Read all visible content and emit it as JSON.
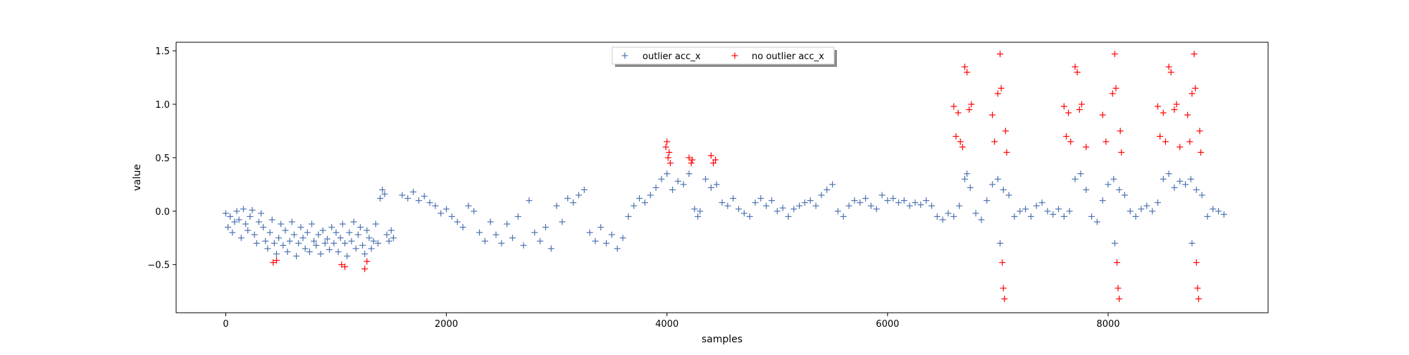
{
  "chart_data": {
    "type": "scatter",
    "title": "",
    "xlabel": "samples",
    "ylabel": "value",
    "xlim": [
      -450,
      9450
    ],
    "ylim": [
      -0.95,
      1.58
    ],
    "xticks": [
      0,
      2000,
      4000,
      6000,
      8000
    ],
    "xtick_labels": [
      "0",
      "2000",
      "4000",
      "6000",
      "8000"
    ],
    "yticks": [
      -0.5,
      0.0,
      0.5,
      1.0,
      1.5
    ],
    "ytick_labels": [
      "−0.5",
      "0.0",
      "0.5",
      "1.0",
      "1.5"
    ],
    "grid": false,
    "legend_position": "top-center",
    "marker": "+",
    "series": [
      {
        "name": "outlier acc_x",
        "color": "#4c72b0",
        "points": [
          [
            0,
            -0.02
          ],
          [
            20,
            -0.15
          ],
          [
            40,
            -0.05
          ],
          [
            60,
            -0.2
          ],
          [
            80,
            -0.1
          ],
          [
            100,
            0.0
          ],
          [
            120,
            -0.08
          ],
          [
            140,
            -0.25
          ],
          [
            160,
            0.02
          ],
          [
            180,
            -0.12
          ],
          [
            200,
            -0.18
          ],
          [
            220,
            -0.05
          ],
          [
            240,
            0.01
          ],
          [
            260,
            -0.22
          ],
          [
            280,
            -0.3
          ],
          [
            300,
            -0.1
          ],
          [
            320,
            -0.02
          ],
          [
            340,
            -0.15
          ],
          [
            360,
            -0.28
          ],
          [
            380,
            -0.35
          ],
          [
            400,
            -0.2
          ],
          [
            420,
            -0.08
          ],
          [
            440,
            -0.3
          ],
          [
            460,
            -0.4
          ],
          [
            480,
            -0.25
          ],
          [
            500,
            -0.12
          ],
          [
            520,
            -0.32
          ],
          [
            540,
            -0.18
          ],
          [
            560,
            -0.38
          ],
          [
            580,
            -0.28
          ],
          [
            600,
            -0.1
          ],
          [
            620,
            -0.22
          ],
          [
            640,
            -0.42
          ],
          [
            660,
            -0.3
          ],
          [
            680,
            -0.15
          ],
          [
            700,
            -0.25
          ],
          [
            720,
            -0.35
          ],
          [
            740,
            -0.2
          ],
          [
            760,
            -0.38
          ],
          [
            780,
            -0.12
          ],
          [
            800,
            -0.28
          ],
          [
            820,
            -0.32
          ],
          [
            840,
            -0.22
          ],
          [
            860,
            -0.4
          ],
          [
            880,
            -0.18
          ],
          [
            900,
            -0.3
          ],
          [
            920,
            -0.26
          ],
          [
            940,
            -0.36
          ],
          [
            960,
            -0.15
          ],
          [
            980,
            -0.3
          ],
          [
            1000,
            -0.2
          ],
          [
            1020,
            -0.38
          ],
          [
            1040,
            -0.25
          ],
          [
            1060,
            -0.12
          ],
          [
            1080,
            -0.3
          ],
          [
            1100,
            -0.42
          ],
          [
            1120,
            -0.2
          ],
          [
            1140,
            -0.28
          ],
          [
            1160,
            -0.1
          ],
          [
            1180,
            -0.35
          ],
          [
            1200,
            -0.22
          ],
          [
            1220,
            -0.15
          ],
          [
            1240,
            -0.32
          ],
          [
            1260,
            -0.4
          ],
          [
            1280,
            -0.18
          ],
          [
            1300,
            -0.25
          ],
          [
            1320,
            -0.35
          ],
          [
            1340,
            -0.28
          ],
          [
            1360,
            -0.12
          ],
          [
            1380,
            -0.3
          ],
          [
            1400,
            0.12
          ],
          [
            1420,
            0.2
          ],
          [
            1440,
            0.16
          ],
          [
            1460,
            -0.22
          ],
          [
            1480,
            -0.28
          ],
          [
            1500,
            -0.18
          ],
          [
            1520,
            -0.25
          ],
          [
            1600,
            0.15
          ],
          [
            1650,
            0.12
          ],
          [
            1700,
            0.18
          ],
          [
            1750,
            0.1
          ],
          [
            1800,
            0.14
          ],
          [
            1850,
            0.08
          ],
          [
            1900,
            0.05
          ],
          [
            1950,
            -0.02
          ],
          [
            2000,
            0.02
          ],
          [
            2050,
            -0.05
          ],
          [
            2100,
            -0.1
          ],
          [
            2150,
            -0.15
          ],
          [
            2200,
            0.05
          ],
          [
            2250,
            0.0
          ],
          [
            2300,
            -0.2
          ],
          [
            2350,
            -0.28
          ],
          [
            2400,
            -0.1
          ],
          [
            2450,
            -0.22
          ],
          [
            2500,
            -0.3
          ],
          [
            2550,
            -0.12
          ],
          [
            2600,
            -0.25
          ],
          [
            2650,
            -0.05
          ],
          [
            2700,
            -0.32
          ],
          [
            2750,
            0.1
          ],
          [
            2800,
            -0.2
          ],
          [
            2850,
            -0.28
          ],
          [
            2900,
            -0.15
          ],
          [
            2950,
            -0.35
          ],
          [
            3000,
            0.05
          ],
          [
            3050,
            -0.1
          ],
          [
            3100,
            0.12
          ],
          [
            3150,
            0.08
          ],
          [
            3200,
            0.15
          ],
          [
            3250,
            0.2
          ],
          [
            3300,
            -0.2
          ],
          [
            3350,
            -0.28
          ],
          [
            3400,
            -0.15
          ],
          [
            3450,
            -0.3
          ],
          [
            3500,
            -0.22
          ],
          [
            3550,
            -0.35
          ],
          [
            3600,
            -0.25
          ],
          [
            3650,
            -0.05
          ],
          [
            3700,
            0.05
          ],
          [
            3750,
            0.12
          ],
          [
            3800,
            0.08
          ],
          [
            3850,
            0.15
          ],
          [
            3900,
            0.22
          ],
          [
            3950,
            0.3
          ],
          [
            4000,
            0.35
          ],
          [
            4050,
            0.2
          ],
          [
            4100,
            0.28
          ],
          [
            4150,
            0.25
          ],
          [
            4200,
            0.35
          ],
          [
            4250,
            0.02
          ],
          [
            4280,
            -0.05
          ],
          [
            4300,
            0.0
          ],
          [
            4350,
            0.3
          ],
          [
            4400,
            0.22
          ],
          [
            4450,
            0.25
          ],
          [
            4500,
            0.08
          ],
          [
            4550,
            0.05
          ],
          [
            4600,
            0.12
          ],
          [
            4650,
            0.02
          ],
          [
            4700,
            -0.02
          ],
          [
            4750,
            -0.05
          ],
          [
            4800,
            0.08
          ],
          [
            4850,
            0.12
          ],
          [
            4900,
            0.05
          ],
          [
            4950,
            0.1
          ],
          [
            5000,
            0.0
          ],
          [
            5050,
            0.03
          ],
          [
            5100,
            -0.05
          ],
          [
            5150,
            0.02
          ],
          [
            5200,
            0.05
          ],
          [
            5250,
            0.08
          ],
          [
            5300,
            0.1
          ],
          [
            5350,
            0.05
          ],
          [
            5400,
            0.15
          ],
          [
            5450,
            0.2
          ],
          [
            5500,
            0.25
          ],
          [
            5550,
            0.0
          ],
          [
            5600,
            -0.05
          ],
          [
            5650,
            0.05
          ],
          [
            5700,
            0.1
          ],
          [
            5750,
            0.08
          ],
          [
            5800,
            0.12
          ],
          [
            5850,
            0.05
          ],
          [
            5900,
            0.02
          ],
          [
            5950,
            0.15
          ],
          [
            6000,
            0.1
          ],
          [
            6050,
            0.12
          ],
          [
            6100,
            0.08
          ],
          [
            6150,
            0.1
          ],
          [
            6200,
            0.05
          ],
          [
            6250,
            0.08
          ],
          [
            6300,
            0.06
          ],
          [
            6350,
            0.1
          ],
          [
            6400,
            0.05
          ],
          [
            6450,
            -0.05
          ],
          [
            6500,
            -0.08
          ],
          [
            6550,
            -0.02
          ],
          [
            6600,
            -0.05
          ],
          [
            6650,
            0.05
          ],
          [
            6700,
            0.3
          ],
          [
            6720,
            0.35
          ],
          [
            6750,
            0.22
          ],
          [
            6800,
            -0.02
          ],
          [
            6850,
            -0.08
          ],
          [
            6900,
            0.1
          ],
          [
            6950,
            0.25
          ],
          [
            7000,
            0.3
          ],
          [
            7020,
            -0.3
          ],
          [
            7050,
            0.2
          ],
          [
            7100,
            0.15
          ],
          [
            7150,
            -0.05
          ],
          [
            7200,
            0.0
          ],
          [
            7250,
            0.02
          ],
          [
            7300,
            -0.05
          ],
          [
            7350,
            0.05
          ],
          [
            7400,
            0.08
          ],
          [
            7450,
            0.0
          ],
          [
            7500,
            -0.03
          ],
          [
            7550,
            0.02
          ],
          [
            7600,
            -0.05
          ],
          [
            7650,
            0.0
          ],
          [
            7700,
            0.3
          ],
          [
            7750,
            0.35
          ],
          [
            7800,
            0.2
          ],
          [
            7850,
            -0.05
          ],
          [
            7900,
            -0.1
          ],
          [
            7950,
            0.1
          ],
          [
            8000,
            0.25
          ],
          [
            8050,
            0.3
          ],
          [
            8060,
            -0.3
          ],
          [
            8100,
            0.2
          ],
          [
            8150,
            0.15
          ],
          [
            8200,
            0.0
          ],
          [
            8250,
            -0.05
          ],
          [
            8300,
            0.02
          ],
          [
            8350,
            0.05
          ],
          [
            8400,
            0.0
          ],
          [
            8450,
            0.08
          ],
          [
            8500,
            0.3
          ],
          [
            8550,
            0.35
          ],
          [
            8600,
            0.22
          ],
          [
            8650,
            0.28
          ],
          [
            8700,
            0.25
          ],
          [
            8750,
            0.3
          ],
          [
            8760,
            -0.3
          ],
          [
            8800,
            0.2
          ],
          [
            8850,
            0.15
          ],
          [
            8900,
            -0.05
          ],
          [
            8950,
            0.02
          ],
          [
            9000,
            0.0
          ],
          [
            9050,
            -0.03
          ]
        ]
      },
      {
        "name": "no outlier acc_x",
        "color": "#ff0000",
        "points": [
          [
            430,
            -0.48
          ],
          [
            460,
            -0.46
          ],
          [
            1050,
            -0.5
          ],
          [
            1080,
            -0.52
          ],
          [
            1260,
            -0.54
          ],
          [
            1280,
            -0.47
          ],
          [
            3990,
            0.6
          ],
          [
            4000,
            0.65
          ],
          [
            4010,
            0.5
          ],
          [
            4020,
            0.55
          ],
          [
            4030,
            0.45
          ],
          [
            4200,
            0.5
          ],
          [
            4220,
            0.45
          ],
          [
            4230,
            0.48
          ],
          [
            4400,
            0.52
          ],
          [
            4420,
            0.45
          ],
          [
            4440,
            0.48
          ],
          [
            6600,
            0.98
          ],
          [
            6620,
            0.7
          ],
          [
            6640,
            0.92
          ],
          [
            6660,
            0.65
          ],
          [
            6680,
            0.6
          ],
          [
            6700,
            1.35
          ],
          [
            6720,
            1.3
          ],
          [
            6740,
            0.95
          ],
          [
            6760,
            1.0
          ],
          [
            6950,
            0.9
          ],
          [
            6970,
            0.65
          ],
          [
            7000,
            1.1
          ],
          [
            7020,
            1.47
          ],
          [
            7030,
            1.15
          ],
          [
            7040,
            -0.48
          ],
          [
            7050,
            -0.72
          ],
          [
            7060,
            -0.82
          ],
          [
            7070,
            0.75
          ],
          [
            7080,
            0.55
          ],
          [
            7600,
            0.98
          ],
          [
            7620,
            0.7
          ],
          [
            7640,
            0.92
          ],
          [
            7660,
            0.65
          ],
          [
            7700,
            1.35
          ],
          [
            7720,
            1.3
          ],
          [
            7740,
            0.95
          ],
          [
            7760,
            1.0
          ],
          [
            7800,
            0.6
          ],
          [
            7950,
            0.9
          ],
          [
            7980,
            0.65
          ],
          [
            8040,
            1.1
          ],
          [
            8060,
            1.47
          ],
          [
            8070,
            1.15
          ],
          [
            8080,
            -0.48
          ],
          [
            8090,
            -0.72
          ],
          [
            8100,
            -0.82
          ],
          [
            8110,
            0.75
          ],
          [
            8120,
            0.55
          ],
          [
            8450,
            0.98
          ],
          [
            8470,
            0.7
          ],
          [
            8500,
            0.92
          ],
          [
            8520,
            0.65
          ],
          [
            8550,
            1.35
          ],
          [
            8570,
            1.3
          ],
          [
            8600,
            0.95
          ],
          [
            8620,
            1.0
          ],
          [
            8650,
            0.6
          ],
          [
            8720,
            0.9
          ],
          [
            8740,
            0.65
          ],
          [
            8760,
            1.1
          ],
          [
            8780,
            1.47
          ],
          [
            8790,
            1.15
          ],
          [
            8800,
            -0.48
          ],
          [
            8810,
            -0.72
          ],
          [
            8820,
            -0.82
          ],
          [
            8830,
            0.75
          ],
          [
            8840,
            0.55
          ]
        ]
      }
    ]
  }
}
